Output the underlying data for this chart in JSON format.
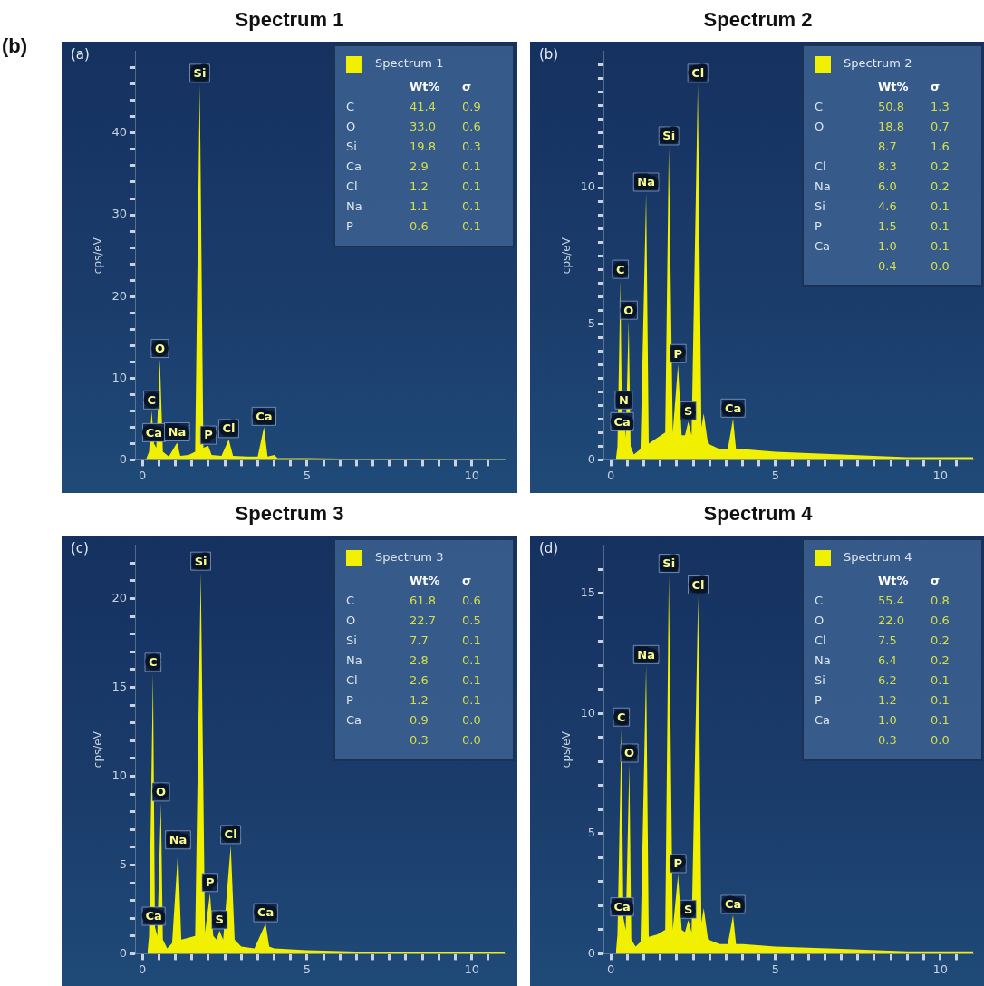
{
  "chart_data": [
    {
      "type": "area",
      "title": "Spectrum 1",
      "ylabel": "cps/eV",
      "legend": "top right",
      "marker": "none",
      "x": [
        0.1,
        0.2,
        0.28,
        0.35,
        0.42,
        0.53,
        0.62,
        0.8,
        1.05,
        1.15,
        1.4,
        1.6,
        1.74,
        1.85,
        2.0,
        2.1,
        2.4,
        2.62,
        2.75,
        3.2,
        3.5,
        3.69,
        3.8,
        4.01,
        4.1,
        5,
        7,
        9,
        11
      ],
      "series": [
        {
          "name": "Spectrum 1",
          "color": "#f0f000",
          "values": [
            0,
            1,
            6,
            2,
            1.5,
            12.3,
            1,
            0.4,
            2.1,
            0.5,
            0.6,
            1.0,
            46,
            1.5,
            1.7,
            0.6,
            0.5,
            2.5,
            0.5,
            0.4,
            0.4,
            4.0,
            0.4,
            0.6,
            0.2,
            0.2,
            0.1,
            0.1,
            0.1
          ]
        }
      ],
      "xlim": [
        -0.2,
        11
      ],
      "ylim": [
        0,
        50
      ],
      "xticks": [
        0,
        {
          "value": 0.5,
          "label": null
        },
        {
          "value": 1,
          "label": null
        },
        {
          "value": 1.5,
          "label": null
        },
        {
          "value": 2,
          "label": null
        },
        {
          "value": 2.5,
          "label": null
        },
        {
          "value": 3,
          "label": null
        },
        {
          "value": 3.5,
          "label": null
        },
        {
          "value": 4,
          "label": null
        },
        {
          "value": 4.5,
          "label": null
        },
        5,
        {
          "value": 5.5,
          "label": null
        },
        {
          "value": 6,
          "label": null
        },
        {
          "value": 6.5,
          "label": null
        },
        {
          "value": 7,
          "label": null
        },
        {
          "value": 7.5,
          "label": null
        },
        {
          "value": 8,
          "label": null
        },
        {
          "value": 8.5,
          "label": null
        },
        {
          "value": 9,
          "label": null
        },
        {
          "value": 9.5,
          "label": null
        },
        10,
        {
          "value": 10.5,
          "label": null
        }
      ],
      "yticks": [
        0,
        {
          "value": 2,
          "label": null
        },
        {
          "value": 4,
          "label": null
        },
        {
          "value": 6,
          "label": null
        },
        {
          "value": 8,
          "label": null
        },
        10,
        {
          "value": 12,
          "label": null
        },
        {
          "value": 14,
          "label": null
        },
        {
          "value": 16,
          "label": null
        },
        {
          "value": 18,
          "label": null
        },
        20,
        {
          "value": 22,
          "label": null
        },
        {
          "value": 24,
          "label": null
        },
        {
          "value": 26,
          "label": null
        },
        {
          "value": 28,
          "label": null
        },
        30,
        {
          "value": 32,
          "label": null
        },
        {
          "value": 34,
          "label": null
        },
        {
          "value": 36,
          "label": null
        },
        {
          "value": 38,
          "label": null
        },
        40,
        {
          "value": 42,
          "label": null
        },
        {
          "value": 44,
          "label": null
        },
        {
          "value": 46,
          "label": null
        },
        {
          "value": 48,
          "label": null
        }
      ],
      "annotations": [
        "(a)",
        "(b)",
        "\tWt%\tσ",
        "C\t41.4\t0.9",
        "O\t33.0\t0.6",
        "Si\t19.8\t0.3",
        "Ca\t2.9\t0.1",
        "Cl\t1.2\t0.1",
        "Na\t1.1\t0.1",
        "P\t0.6\t0.1",
        {
          "text": "Ca",
          "x": 0.35,
          "y": 2
        },
        {
          "text": "C",
          "x": 0.28,
          "y": 6
        },
        {
          "text": "O",
          "x": 0.53,
          "y": 12.3
        },
        {
          "text": "Na",
          "x": 1.05,
          "y": 2.1
        },
        {
          "text": "Si",
          "x": 1.74,
          "y": 46
        },
        {
          "text": "P",
          "x": 2.0,
          "y": 1.7
        },
        {
          "text": "Cl",
          "x": 2.62,
          "y": 2.5
        },
        {
          "text": "Ca",
          "x": 3.69,
          "y": 4.0
        }
      ]
    },
    {
      "type": "area",
      "title": "Spectrum 2",
      "ylabel": "cps/eV",
      "legend": "top right",
      "marker": "none",
      "x": [
        0.15,
        0.2,
        0.29,
        0.34,
        0.39,
        0.45,
        0.54,
        0.6,
        0.7,
        0.9,
        1.07,
        1.15,
        1.4,
        1.65,
        1.76,
        1.88,
        2.04,
        2.15,
        2.25,
        2.35,
        2.45,
        2.64,
        2.75,
        2.82,
        2.95,
        3.3,
        3.55,
        3.71,
        3.8,
        4.0,
        5,
        7,
        9,
        11
      ],
      "series": [
        {
          "name": "Spectrum 2",
          "color": "#f0f000",
          "values": [
            0,
            0.5,
            6.6,
            1.0,
            1.8,
            0.8,
            5.1,
            0.5,
            0.2,
            0.4,
            9.8,
            0.6,
            0.8,
            1.0,
            11.5,
            1.0,
            3.5,
            0.9,
            0.9,
            1.4,
            0.9,
            13.8,
            1.2,
            1.7,
            0.6,
            0.4,
            0.4,
            1.5,
            0.4,
            0.4,
            0.3,
            0.2,
            0.1,
            0.1
          ]
        }
      ],
      "xlim": [
        -0.2,
        11
      ],
      "ylim": [
        0,
        15
      ],
      "xticks": [
        0,
        {
          "value": 0.5,
          "label": null
        },
        {
          "value": 1,
          "label": null
        },
        {
          "value": 1.5,
          "label": null
        },
        {
          "value": 2,
          "label": null
        },
        {
          "value": 2.5,
          "label": null
        },
        {
          "value": 3,
          "label": null
        },
        {
          "value": 3.5,
          "label": null
        },
        {
          "value": 4,
          "label": null
        },
        {
          "value": 4.5,
          "label": null
        },
        5,
        {
          "value": 5.5,
          "label": null
        },
        {
          "value": 6,
          "label": null
        },
        {
          "value": 6.5,
          "label": null
        },
        {
          "value": 7,
          "label": null
        },
        {
          "value": 7.5,
          "label": null
        },
        {
          "value": 8,
          "label": null
        },
        {
          "value": 8.5,
          "label": null
        },
        {
          "value": 9,
          "label": null
        },
        {
          "value": 9.5,
          "label": null
        },
        10,
        {
          "value": 10.5,
          "label": null
        }
      ],
      "yticks": [
        0,
        {
          "value": 0.5,
          "label": null
        },
        {
          "value": 1,
          "label": null
        },
        {
          "value": 1.5,
          "label": null
        },
        {
          "value": 2,
          "label": null
        },
        {
          "value": 2.5,
          "label": null
        },
        {
          "value": 3,
          "label": null
        },
        {
          "value": 3.5,
          "label": null
        },
        {
          "value": 4,
          "label": null
        },
        {
          "value": 4.5,
          "label": null
        },
        5,
        {
          "value": 5.5,
          "label": null
        },
        {
          "value": 6,
          "label": null
        },
        {
          "value": 6.5,
          "label": null
        },
        {
          "value": 7,
          "label": null
        },
        {
          "value": 7.5,
          "label": null
        },
        {
          "value": 8,
          "label": null
        },
        {
          "value": 8.5,
          "label": null
        },
        {
          "value": 9,
          "label": null
        },
        {
          "value": 9.5,
          "label": null
        },
        10,
        {
          "value": 10.5,
          "label": null
        },
        {
          "value": 11,
          "label": null
        },
        {
          "value": 11.5,
          "label": null
        },
        {
          "value": 12,
          "label": null
        },
        {
          "value": 12.5,
          "label": null
        },
        {
          "value": 13,
          "label": null
        },
        {
          "value": 13.5,
          "label": null
        },
        {
          "value": 14,
          "label": null
        },
        {
          "value": 14.5,
          "label": null
        }
      ],
      "annotations": [
        "(b)",
        "\tWt%\tσ",
        "C\t50.8\t1.3",
        "O\t18.8\t0.7",
        "\t8.7\t1.6",
        "Cl\t8.3\t0.2",
        "Na\t6.0\t0.2",
        "Si\t4.6\t0.1",
        "P\t1.5\t0.1",
        "Ca\t1.0\t0.1",
        "\t0.4\t0.0",
        {
          "text": "Ca",
          "x": 0.34,
          "y": 1.0
        },
        {
          "text": "N",
          "x": 0.39,
          "y": 1.8
        },
        {
          "text": "C",
          "x": 0.29,
          "y": 6.6
        },
        {
          "text": "O",
          "x": 0.54,
          "y": 5.1
        },
        {
          "text": "Na",
          "x": 1.07,
          "y": 9.8
        },
        {
          "text": "Si",
          "x": 1.76,
          "y": 11.5
        },
        {
          "text": "P",
          "x": 2.04,
          "y": 3.5
        },
        {
          "text": "S",
          "x": 2.35,
          "y": 1.4
        },
        {
          "text": "Cl",
          "x": 2.64,
          "y": 13.8
        },
        {
          "text": "Ca",
          "x": 3.71,
          "y": 1.5
        }
      ]
    },
    {
      "type": "area",
      "title": "Spectrum 3",
      "ylabel": "cps/eV",
      "legend": "top right",
      "marker": "none",
      "x": [
        0.15,
        0.2,
        0.32,
        0.38,
        0.45,
        0.56,
        0.62,
        0.75,
        0.9,
        1.08,
        1.18,
        1.4,
        1.6,
        1.77,
        1.9,
        2.05,
        2.15,
        2.25,
        2.34,
        2.45,
        2.68,
        2.8,
        3.0,
        3.4,
        3.74,
        3.85,
        4.0,
        5,
        7,
        9,
        11
      ],
      "series": [
        {
          "name": "Spectrum 3",
          "color": "#f0f000",
          "values": [
            0,
            1.0,
            15.8,
            1.5,
            1.0,
            8.5,
            0.8,
            0.3,
            0.6,
            5.8,
            0.8,
            0.9,
            1.0,
            21.5,
            1.2,
            3.4,
            1.0,
            0.8,
            1.3,
            0.8,
            6.1,
            0.8,
            0.4,
            0.3,
            1.7,
            0.4,
            0.3,
            0.2,
            0.1,
            0.1,
            0.1
          ]
        }
      ],
      "xlim": [
        -0.2,
        11
      ],
      "ylim": [
        0,
        23
      ],
      "xticks": [
        0,
        {
          "value": 0.5,
          "label": null
        },
        {
          "value": 1,
          "label": null
        },
        {
          "value": 1.5,
          "label": null
        },
        {
          "value": 2,
          "label": null
        },
        {
          "value": 2.5,
          "label": null
        },
        {
          "value": 3,
          "label": null
        },
        {
          "value": 3.5,
          "label": null
        },
        {
          "value": 4,
          "label": null
        },
        {
          "value": 4.5,
          "label": null
        },
        5,
        {
          "value": 5.5,
          "label": null
        },
        {
          "value": 6,
          "label": null
        },
        {
          "value": 6.5,
          "label": null
        },
        {
          "value": 7,
          "label": null
        },
        {
          "value": 7.5,
          "label": null
        },
        {
          "value": 8,
          "label": null
        },
        {
          "value": 8.5,
          "label": null
        },
        {
          "value": 9,
          "label": null
        },
        {
          "value": 9.5,
          "label": null
        },
        10,
        {
          "value": 10.5,
          "label": null
        }
      ],
      "yticks": [
        0,
        {
          "value": 1,
          "label": null
        },
        {
          "value": 2,
          "label": null
        },
        {
          "value": 3,
          "label": null
        },
        {
          "value": 4,
          "label": null
        },
        5,
        {
          "value": 6,
          "label": null
        },
        {
          "value": 7,
          "label": null
        },
        {
          "value": 8,
          "label": null
        },
        {
          "value": 9,
          "label": null
        },
        10,
        {
          "value": 11,
          "label": null
        },
        {
          "value": 12,
          "label": null
        },
        {
          "value": 13,
          "label": null
        },
        {
          "value": 14,
          "label": null
        },
        15,
        {
          "value": 16,
          "label": null
        },
        {
          "value": 17,
          "label": null
        },
        {
          "value": 18,
          "label": null
        },
        {
          "value": 19,
          "label": null
        },
        20,
        {
          "value": 21,
          "label": null
        },
        {
          "value": 22,
          "label": null
        }
      ],
      "annotations": [
        "(c)",
        "\tWt%\tσ",
        "C\t61.8\t0.6",
        "O\t22.7\t0.5",
        "Si\t7.7\t0.1",
        "Na\t2.8\t0.1",
        "Cl\t2.6\t0.1",
        "P\t1.2\t0.1",
        "Ca\t0.9\t0.0",
        "\t0.3\t0.0",
        {
          "text": "Ca",
          "x": 0.34,
          "y": 1.5
        },
        {
          "text": "C",
          "x": 0.32,
          "y": 15.8
        },
        {
          "text": "O",
          "x": 0.56,
          "y": 8.5
        },
        {
          "text": "Na",
          "x": 1.08,
          "y": 5.8
        },
        {
          "text": "Si",
          "x": 1.77,
          "y": 21.5
        },
        {
          "text": "P",
          "x": 2.05,
          "y": 3.4
        },
        {
          "text": "S",
          "x": 2.34,
          "y": 1.3
        },
        {
          "text": "Cl",
          "x": 2.68,
          "y": 6.1
        },
        {
          "text": "Ca",
          "x": 3.74,
          "y": 1.7
        }
      ]
    },
    {
      "type": "area",
      "title": "Spectrum 4",
      "ylabel": "cps/eV",
      "legend": "top right",
      "marker": "none",
      "x": [
        0.15,
        0.2,
        0.32,
        0.38,
        0.45,
        0.56,
        0.62,
        0.75,
        0.9,
        1.07,
        1.15,
        1.4,
        1.65,
        1.76,
        1.88,
        2.04,
        2.15,
        2.25,
        2.35,
        2.45,
        2.65,
        2.75,
        2.82,
        2.95,
        3.3,
        3.55,
        3.71,
        3.8,
        4.0,
        5,
        7,
        9,
        11
      ],
      "series": [
        {
          "name": "Spectrum 4",
          "color": "#f0f000",
          "values": [
            0,
            0.8,
            9.4,
            1.5,
            1.0,
            7.9,
            0.6,
            0.3,
            0.5,
            12.0,
            0.7,
            0.8,
            1.0,
            15.8,
            1.0,
            3.3,
            1.0,
            0.9,
            1.4,
            0.9,
            14.9,
            1.3,
            1.9,
            0.6,
            0.4,
            0.4,
            1.6,
            0.4,
            0.4,
            0.3,
            0.2,
            0.1,
            0.1
          ]
        }
      ],
      "xlim": [
        -0.2,
        11
      ],
      "ylim": [
        0,
        17
      ],
      "xticks": [
        0,
        {
          "value": 0.5,
          "label": null
        },
        {
          "value": 1,
          "label": null
        },
        {
          "value": 1.5,
          "label": null
        },
        {
          "value": 2,
          "label": null
        },
        {
          "value": 2.5,
          "label": null
        },
        {
          "value": 3,
          "label": null
        },
        {
          "value": 3.5,
          "label": null
        },
        {
          "value": 4,
          "label": null
        },
        {
          "value": 4.5,
          "label": null
        },
        5,
        {
          "value": 5.5,
          "label": null
        },
        {
          "value": 6,
          "label": null
        },
        {
          "value": 6.5,
          "label": null
        },
        {
          "value": 7,
          "label": null
        },
        {
          "value": 7.5,
          "label": null
        },
        {
          "value": 8,
          "label": null
        },
        {
          "value": 8.5,
          "label": null
        },
        {
          "value": 9,
          "label": null
        },
        {
          "value": 9.5,
          "label": null
        },
        10,
        {
          "value": 10.5,
          "label": null
        }
      ],
      "yticks": [
        0,
        {
          "value": 1,
          "label": null
        },
        {
          "value": 2,
          "label": null
        },
        {
          "value": 3,
          "label": null
        },
        {
          "value": 4,
          "label": null
        },
        5,
        {
          "value": 6,
          "label": null
        },
        {
          "value": 7,
          "label": null
        },
        {
          "value": 8,
          "label": null
        },
        {
          "value": 9,
          "label": null
        },
        10,
        {
          "value": 11,
          "label": null
        },
        {
          "value": 12,
          "label": null
        },
        {
          "value": 13,
          "label": null
        },
        {
          "value": 14,
          "label": null
        },
        15,
        {
          "value": 16,
          "label": null
        }
      ],
      "annotations": [
        "(d)",
        "\tWt%\tσ",
        "C\t55.4\t0.8",
        "O\t22.0\t0.6",
        "Cl\t7.5\t0.2",
        "Na\t6.4\t0.2",
        "Si\t6.2\t0.1",
        "P\t1.2\t0.1",
        "Ca\t1.0\t0.1",
        "\t0.3\t0.0",
        {
          "text": "Ca",
          "x": 0.34,
          "y": 1.5
        },
        {
          "text": "C",
          "x": 0.32,
          "y": 9.4
        },
        {
          "text": "O",
          "x": 0.56,
          "y": 7.9
        },
        {
          "text": "Na",
          "x": 1.07,
          "y": 12.0
        },
        {
          "text": "Si",
          "x": 1.76,
          "y": 15.8
        },
        {
          "text": "P",
          "x": 2.04,
          "y": 3.3
        },
        {
          "text": "S",
          "x": 2.35,
          "y": 1.4
        },
        {
          "text": "Cl",
          "x": 2.65,
          "y": 14.9
        },
        {
          "text": "Ca",
          "x": 3.71,
          "y": 1.6
        }
      ]
    }
  ]
}
